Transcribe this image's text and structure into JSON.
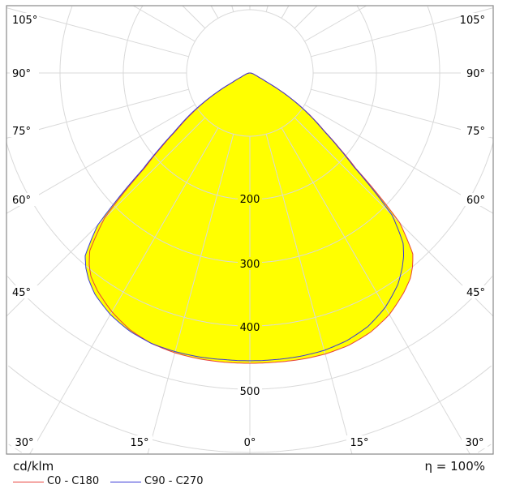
{
  "chart_data": {
    "type": "polar-line",
    "unit": "cd/klm",
    "efficiency": "η = 100%",
    "radial_ticks": [
      100,
      200,
      300,
      400,
      500,
      600,
      700
    ],
    "radial_tick_labels": [
      "200",
      "300",
      "400",
      "500"
    ],
    "angle_labels_side": [
      "105°",
      "90°",
      "75°",
      "60°",
      "45°"
    ],
    "angle_labels_bottom": [
      "30°",
      "15°",
      "0°",
      "15°",
      "30°"
    ],
    "gamma": [
      0,
      5,
      10,
      15,
      20,
      25,
      30,
      35,
      38,
      40,
      42,
      45,
      48,
      50,
      52,
      55,
      58,
      60,
      62,
      65,
      70,
      80,
      90
    ],
    "series": [
      {
        "name": "C0 - C180",
        "color": "#e8413c",
        "right": [
          459,
          459,
          460,
          460,
          458,
          452,
          441,
          424,
          412,
          400,
          385,
          335,
          225,
          185,
          150,
          115,
          80,
          55,
          30,
          15,
          8,
          3,
          0
        ],
        "left": [
          459,
          459,
          459,
          458,
          455,
          448,
          436,
          420,
          408,
          395,
          378,
          325,
          222,
          183,
          148,
          113,
          79,
          54,
          30,
          15,
          8,
          3,
          0
        ]
      },
      {
        "name": "C90 - C270",
        "color": "#3a3ad6",
        "right": [
          455,
          455,
          455,
          454,
          450,
          442,
          428,
          408,
          391,
          378,
          362,
          318,
          220,
          182,
          148,
          113,
          79,
          54,
          30,
          15,
          8,
          3,
          0
        ],
        "left": [
          455,
          455,
          456,
          456,
          455,
          450,
          441,
          427,
          414,
          403,
          389,
          340,
          228,
          188,
          152,
          117,
          81,
          56,
          31,
          15,
          8,
          3,
          0
        ]
      }
    ],
    "fill_color": "#ffff00",
    "rlim": [
      0,
      700
    ]
  }
}
